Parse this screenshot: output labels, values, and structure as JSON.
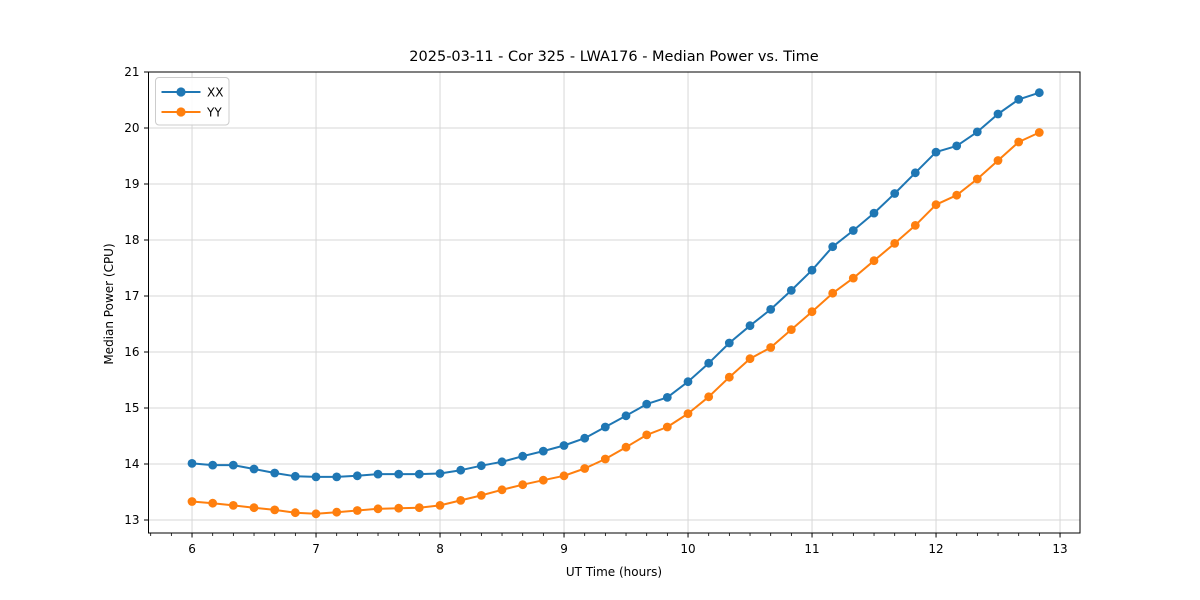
{
  "chart_data": {
    "type": "line",
    "title": "2025-03-11 - Cor 325 - LWA176 - Median Power vs. Time",
    "xlabel": "UT Time (hours)",
    "ylabel": "Median Power (CPU)",
    "xlim": [
      5.649,
      13.161
    ],
    "ylim": [
      12.768,
      21.0
    ],
    "xticks": [
      6,
      7,
      8,
      9,
      10,
      11,
      12,
      13
    ],
    "yticks": [
      13,
      14,
      15,
      16,
      17,
      18,
      19,
      20,
      21
    ],
    "minor_ticks_x_per_hour": 6,
    "grid": true,
    "legend_position": "upper left",
    "marker": "o",
    "x": [
      6.0,
      6.167,
      6.333,
      6.5,
      6.667,
      6.833,
      7.0,
      7.167,
      7.333,
      7.5,
      7.667,
      7.833,
      8.0,
      8.167,
      8.333,
      8.5,
      8.667,
      8.833,
      9.0,
      9.167,
      9.333,
      9.5,
      9.667,
      9.833,
      10.0,
      10.167,
      10.333,
      10.5,
      10.667,
      10.833,
      11.0,
      11.167,
      11.333,
      11.5,
      11.667,
      11.833,
      12.0,
      12.167,
      12.333,
      12.5,
      12.667,
      12.833
    ],
    "series": [
      {
        "name": "XX",
        "color": "#1f77b4",
        "values": [
          14.01,
          13.98,
          13.98,
          13.91,
          13.84,
          13.78,
          13.77,
          13.77,
          13.79,
          13.82,
          13.82,
          13.82,
          13.83,
          13.89,
          13.97,
          14.04,
          14.14,
          14.23,
          14.33,
          14.46,
          14.66,
          14.86,
          15.07,
          15.19,
          15.47,
          15.8,
          16.16,
          16.47,
          16.76,
          17.1,
          17.46,
          17.88,
          18.17,
          18.48,
          18.83,
          19.2,
          19.57,
          19.68,
          19.93,
          20.25,
          20.51,
          20.63
        ]
      },
      {
        "name": "YY",
        "color": "#ff7f0e",
        "values": [
          13.33,
          13.3,
          13.26,
          13.22,
          13.18,
          13.13,
          13.11,
          13.14,
          13.17,
          13.2,
          13.21,
          13.22,
          13.26,
          13.35,
          13.44,
          13.54,
          13.63,
          13.71,
          13.79,
          13.92,
          14.09,
          14.3,
          14.52,
          14.66,
          14.9,
          15.2,
          15.55,
          15.88,
          16.08,
          16.4,
          16.72,
          17.05,
          17.32,
          17.63,
          17.94,
          18.26,
          18.63,
          18.8,
          19.09,
          19.42,
          19.75,
          19.92
        ]
      }
    ],
    "colors": {
      "grid": "#d7d7d7",
      "spine": "#000000",
      "legend_border": "#cccccc"
    }
  }
}
